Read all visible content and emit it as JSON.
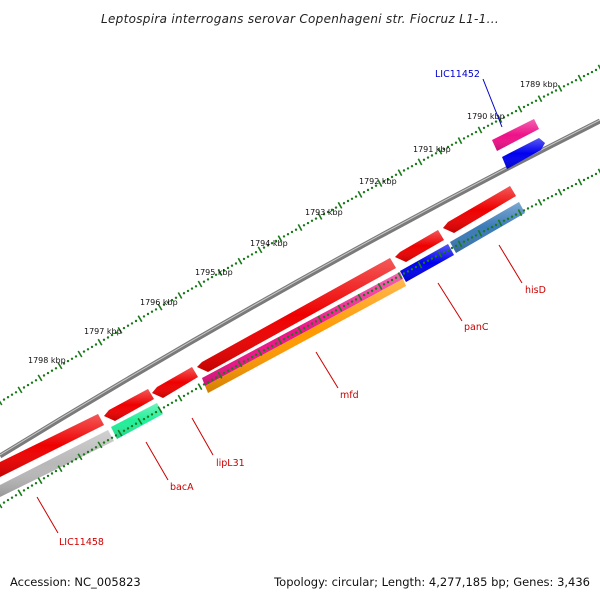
{
  "header": {
    "title": "Leptospira interrogans serovar Copenhageni str. Fiocruz L1-1..."
  },
  "scale": {
    "labels": [
      "1789 kbp",
      "1790 kbp",
      "1791 kbp",
      "1792 kbp",
      "1793 kbp",
      "1794 kbp",
      "1795 kbp",
      "1796 kbp",
      "1797 kbp",
      "1798 kbp"
    ]
  },
  "genes": {
    "LIC11452": {
      "label": "LIC11452",
      "color": "#0000cc"
    },
    "hisD": {
      "label": "hisD",
      "color": "#cc0000"
    },
    "panC": {
      "label": "panC",
      "color": "#cc0000"
    },
    "mfd": {
      "label": "mfd",
      "color": "#cc0000"
    },
    "lipL31": {
      "label": "lipL31",
      "color": "#cc0000"
    },
    "bacA": {
      "label": "bacA",
      "color": "#cc0000"
    },
    "LIC11458": {
      "label": "LIC11458",
      "color": "#cc0000"
    }
  },
  "colors": {
    "cds_red": "#ee0000",
    "magenta": "#ee1188",
    "blue": "#0000ee",
    "steel_blue": "#3a7ab8",
    "orange": "#ff9900",
    "green_teal": "#22ee99",
    "gray": "#b8b8b8",
    "backbone": "#7a7a7a",
    "ticks": "#1a7a1a"
  },
  "footer": {
    "accession": "Accession: NC_005823",
    "info": "Topology: circular; Length: 4,277,185 bp; Genes: 3,436"
  }
}
